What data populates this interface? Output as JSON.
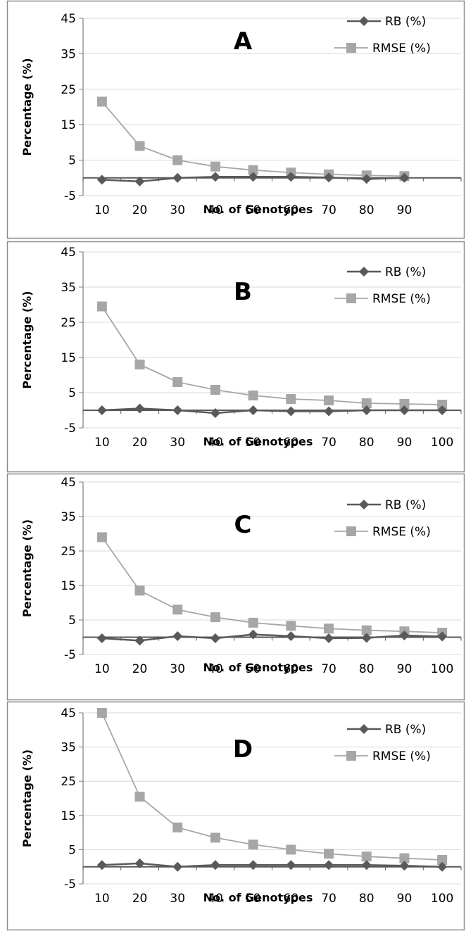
{
  "chart_data": [
    {
      "type": "line",
      "panel_label": "A",
      "xlabel": "No. of Genotypes",
      "ylabel": "Percentage (%)",
      "ylim": [
        -5,
        45
      ],
      "yticks": [
        "45",
        "35",
        "25",
        "15",
        "5",
        "-5"
      ],
      "categories": [
        "10",
        "20",
        "30",
        "40",
        "50",
        "60",
        "70",
        "80",
        "90"
      ],
      "grid": true,
      "legend_position": "top-right",
      "series": [
        {
          "name": "RB (%)",
          "color": "#595959",
          "marker": "diamond",
          "values": [
            -0.5,
            -1.0,
            0.0,
            0.3,
            0.3,
            0.3,
            0.1,
            -0.3,
            0.0
          ]
        },
        {
          "name": "RMSE (%)",
          "color": "#a6a6a6",
          "marker": "square",
          "values": [
            21.5,
            9.0,
            5.0,
            3.2,
            2.2,
            1.5,
            1.0,
            0.7,
            0.5
          ]
        }
      ]
    },
    {
      "type": "line",
      "panel_label": "B",
      "xlabel": "No. of Genotypes",
      "ylabel": "Percentage (%)",
      "ylim": [
        -5,
        45
      ],
      "yticks": [
        "45",
        "35",
        "25",
        "15",
        "5",
        "-5"
      ],
      "categories": [
        "10",
        "20",
        "30",
        "40",
        "50",
        "60",
        "70",
        "80",
        "90",
        "100"
      ],
      "grid": true,
      "legend_position": "top-right",
      "series": [
        {
          "name": "RB (%)",
          "color": "#595959",
          "marker": "diamond",
          "values": [
            0.0,
            0.5,
            0.0,
            -0.8,
            0.0,
            -0.3,
            -0.3,
            0.0,
            0.0,
            0.0
          ]
        },
        {
          "name": "RMSE (%)",
          "color": "#a6a6a6",
          "marker": "square",
          "values": [
            29.5,
            13.0,
            8.0,
            5.8,
            4.2,
            3.2,
            2.8,
            2.0,
            1.8,
            1.6
          ]
        }
      ]
    },
    {
      "type": "line",
      "panel_label": "C",
      "xlabel": "No. of Genotypes",
      "ylabel": "Percentage (%)",
      "ylim": [
        -5,
        45
      ],
      "yticks": [
        "45",
        "35",
        "25",
        "15",
        "5",
        "-5"
      ],
      "categories": [
        "10",
        "20",
        "30",
        "40",
        "50",
        "60",
        "70",
        "80",
        "90",
        "100"
      ],
      "grid": true,
      "legend_position": "top-right",
      "series": [
        {
          "name": "RB (%)",
          "color": "#595959",
          "marker": "diamond",
          "values": [
            -0.3,
            -1.0,
            0.3,
            -0.3,
            0.8,
            0.3,
            -0.3,
            -0.2,
            0.5,
            0.2
          ]
        },
        {
          "name": "RMSE (%)",
          "color": "#a6a6a6",
          "marker": "square",
          "values": [
            29.0,
            13.5,
            8.0,
            5.8,
            4.2,
            3.3,
            2.5,
            2.0,
            1.7,
            1.3
          ]
        }
      ]
    },
    {
      "type": "line",
      "panel_label": "D",
      "xlabel": "No. of Genotypes",
      "ylabel": "Percentage (%)",
      "ylim": [
        -5,
        45
      ],
      "yticks": [
        "45",
        "35",
        "25",
        "15",
        "5",
        "-5"
      ],
      "categories": [
        "10",
        "20",
        "30",
        "40",
        "50",
        "60",
        "70",
        "80",
        "90",
        "100"
      ],
      "grid": true,
      "legend_position": "top-right",
      "series": [
        {
          "name": "RB (%)",
          "color": "#595959",
          "marker": "diamond",
          "values": [
            0.5,
            1.0,
            0.0,
            0.5,
            0.5,
            0.5,
            0.5,
            0.5,
            0.3,
            0.0
          ]
        },
        {
          "name": "RMSE (%)",
          "color": "#a6a6a6",
          "marker": "square",
          "values": [
            45.0,
            20.5,
            11.5,
            8.5,
            6.5,
            5.0,
            3.8,
            3.0,
            2.5,
            2.0
          ]
        }
      ]
    }
  ]
}
